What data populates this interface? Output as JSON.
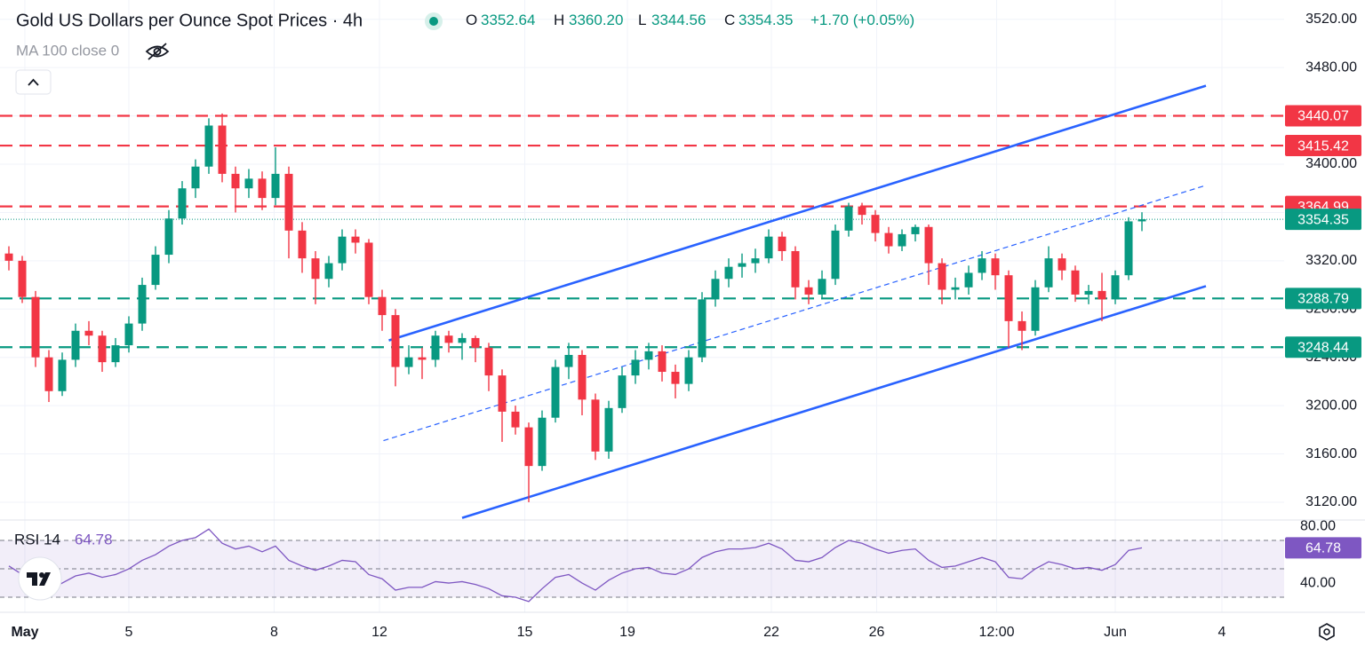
{
  "chart_data": {
    "type": "candlestick",
    "title": "Gold US Dollars per Ounce Spot Prices · 4h",
    "header": {
      "o_label": "O",
      "open": "3352.64",
      "h_label": "H",
      "high": "3360.20",
      "l_label": "L",
      "low": "3344.56",
      "c_label": "C",
      "close": "3354.35",
      "change": "+1.70 (+0.05%)"
    },
    "indicator_label": "MA 100 close 0",
    "up_color": "#089981",
    "down_color": "#f23645",
    "candles": [
      [
        3326,
        3332,
        3312,
        3320
      ],
      [
        3320,
        3324,
        3285,
        3290
      ],
      [
        3290,
        3295,
        3232,
        3240
      ],
      [
        3240,
        3246,
        3203,
        3212
      ],
      [
        3212,
        3244,
        3208,
        3238
      ],
      [
        3238,
        3268,
        3232,
        3262
      ],
      [
        3262,
        3270,
        3250,
        3258
      ],
      [
        3258,
        3262,
        3228,
        3236
      ],
      [
        3236,
        3256,
        3232,
        3250
      ],
      [
        3250,
        3274,
        3244,
        3268
      ],
      [
        3268,
        3306,
        3262,
        3300
      ],
      [
        3300,
        3332,
        3296,
        3325
      ],
      [
        3325,
        3362,
        3318,
        3355
      ],
      [
        3355,
        3386,
        3350,
        3380
      ],
      [
        3380,
        3404,
        3372,
        3398
      ],
      [
        3398,
        3438,
        3392,
        3432
      ],
      [
        3432,
        3442,
        3385,
        3392
      ],
      [
        3392,
        3398,
        3360,
        3380
      ],
      [
        3380,
        3396,
        3372,
        3388
      ],
      [
        3388,
        3394,
        3362,
        3372
      ],
      [
        3372,
        3414,
        3366,
        3392
      ],
      [
        3392,
        3398,
        3322,
        3345
      ],
      [
        3345,
        3352,
        3310,
        3322
      ],
      [
        3322,
        3328,
        3284,
        3305
      ],
      [
        3305,
        3324,
        3298,
        3318
      ],
      [
        3318,
        3346,
        3312,
        3340
      ],
      [
        3340,
        3346,
        3326,
        3335
      ],
      [
        3335,
        3338,
        3284,
        3290
      ],
      [
        3290,
        3296,
        3262,
        3275
      ],
      [
        3275,
        3280,
        3216,
        3232
      ],
      [
        3232,
        3250,
        3226,
        3240
      ],
      [
        3240,
        3248,
        3222,
        3238
      ],
      [
        3238,
        3262,
        3232,
        3258
      ],
      [
        3258,
        3262,
        3244,
        3252
      ],
      [
        3252,
        3260,
        3238,
        3256
      ],
      [
        3256,
        3258,
        3236,
        3248
      ],
      [
        3248,
        3252,
        3212,
        3225
      ],
      [
        3225,
        3230,
        3170,
        3195
      ],
      [
        3195,
        3200,
        3176,
        3182
      ],
      [
        3182,
        3186,
        3120,
        3150
      ],
      [
        3150,
        3196,
        3146,
        3190
      ],
      [
        3190,
        3238,
        3186,
        3232
      ],
      [
        3232,
        3252,
        3222,
        3242
      ],
      [
        3242,
        3246,
        3192,
        3205
      ],
      [
        3205,
        3210,
        3155,
        3162
      ],
      [
        3162,
        3204,
        3156,
        3198
      ],
      [
        3198,
        3232,
        3194,
        3225
      ],
      [
        3225,
        3246,
        3218,
        3238
      ],
      [
        3238,
        3252,
        3230,
        3245
      ],
      [
        3245,
        3250,
        3220,
        3228
      ],
      [
        3228,
        3234,
        3206,
        3218
      ],
      [
        3218,
        3246,
        3212,
        3240
      ],
      [
        3240,
        3294,
        3236,
        3288
      ],
      [
        3288,
        3312,
        3282,
        3305
      ],
      [
        3305,
        3322,
        3298,
        3315
      ],
      [
        3315,
        3326,
        3306,
        3318
      ],
      [
        3318,
        3330,
        3310,
        3322
      ],
      [
        3322,
        3346,
        3318,
        3340
      ],
      [
        3340,
        3344,
        3320,
        3328
      ],
      [
        3328,
        3332,
        3288,
        3298
      ],
      [
        3298,
        3304,
        3284,
        3292
      ],
      [
        3292,
        3312,
        3288,
        3305
      ],
      [
        3305,
        3350,
        3300,
        3345
      ],
      [
        3345,
        3368,
        3340,
        3365
      ],
      [
        3365,
        3368,
        3350,
        3358
      ],
      [
        3358,
        3362,
        3336,
        3343
      ],
      [
        3343,
        3348,
        3326,
        3332
      ],
      [
        3332,
        3346,
        3328,
        3342
      ],
      [
        3342,
        3350,
        3336,
        3348
      ],
      [
        3348,
        3350,
        3300,
        3318
      ],
      [
        3318,
        3322,
        3284,
        3296
      ],
      [
        3296,
        3306,
        3288,
        3298
      ],
      [
        3298,
        3316,
        3292,
        3310
      ],
      [
        3310,
        3328,
        3304,
        3322
      ],
      [
        3322,
        3326,
        3296,
        3308
      ],
      [
        3308,
        3312,
        3248,
        3270
      ],
      [
        3270,
        3278,
        3246,
        3262
      ],
      [
        3262,
        3304,
        3258,
        3298
      ],
      [
        3298,
        3332,
        3294,
        3322
      ],
      [
        3322,
        3326,
        3304,
        3312
      ],
      [
        3312,
        3316,
        3286,
        3292
      ],
      [
        3292,
        3300,
        3284,
        3295
      ],
      [
        3295,
        3310,
        3270,
        3288
      ],
      [
        3288,
        3312,
        3284,
        3308
      ],
      [
        3308,
        3356,
        3304,
        3352.64
      ],
      [
        3352.64,
        3360.2,
        3344.56,
        3354.35
      ]
    ],
    "xlim": [
      -0.667,
      95.667
    ],
    "xticks": [
      {
        "value": 1.2,
        "label": "May"
      },
      {
        "value": 9,
        "label": "5"
      },
      {
        "value": 19.9,
        "label": "8"
      },
      {
        "value": 27.8,
        "label": "12"
      },
      {
        "value": 38.7,
        "label": "15"
      },
      {
        "value": 46.4,
        "label": "19"
      },
      {
        "value": 57.2,
        "label": "22"
      },
      {
        "value": 65.1,
        "label": "26"
      },
      {
        "value": 74.1,
        "label": "12:00"
      },
      {
        "value": 83,
        "label": "Jun"
      },
      {
        "value": 91,
        "label": "4"
      }
    ],
    "ylim": [
      3106,
      3536
    ],
    "yticks": [
      {
        "value": 3120,
        "label": "3120.00"
      },
      {
        "value": 3160,
        "label": "3160.00"
      },
      {
        "value": 3200,
        "label": "3200.00"
      },
      {
        "value": 3240,
        "label": "3240.00"
      },
      {
        "value": 3280,
        "label": "3280.00"
      },
      {
        "value": 3320,
        "label": "3320.00"
      },
      {
        "value": 3360,
        "label": "3360.00"
      },
      {
        "value": 3400,
        "label": "3400.00"
      },
      {
        "value": 3440,
        "label": "3440.00"
      },
      {
        "value": 3480,
        "label": "3480.00"
      },
      {
        "value": 3520,
        "label": "3520.00"
      }
    ],
    "grid": true,
    "levels": [
      {
        "value": 3440.07,
        "color": "#f23645"
      },
      {
        "value": 3415.42,
        "color": "#f23645"
      },
      {
        "value": 3364.99,
        "color": "#f23645"
      },
      {
        "value": 3288.79,
        "color": "#089981"
      },
      {
        "value": 3248.44,
        "color": "#089981"
      }
    ],
    "last_price": {
      "value": 3354.35,
      "color": "#089981"
    },
    "trendlines": [
      {
        "x": [
          28.5,
          89.8
        ],
        "y": [
          3254,
          3465
        ],
        "style": "solid"
      },
      {
        "x": [
          34,
          89.8
        ],
        "y": [
          3107,
          3299
        ],
        "style": "solid"
      },
      {
        "x": [
          28.1,
          89.8
        ],
        "y": [
          3171,
          3382.5
        ],
        "style": "dashed"
      }
    ],
    "trend_color": "#2962ff",
    "rsi": {
      "label": "RSI 14",
      "color": "#7e57c2",
      "values": [
        52,
        46,
        38,
        35,
        40,
        45,
        47,
        44,
        46,
        50,
        56,
        60,
        66,
        70,
        72,
        78,
        68,
        64,
        66,
        62,
        66,
        56,
        52,
        49,
        52,
        56,
        55,
        46,
        43,
        35,
        37,
        37,
        41,
        40,
        41,
        39,
        36,
        31,
        30,
        27,
        36,
        44,
        46,
        40,
        35,
        42,
        47,
        50,
        51,
        47,
        46,
        50,
        58,
        62,
        64,
        64,
        65,
        68,
        64,
        56,
        55,
        58,
        65,
        70,
        68,
        64,
        61,
        63,
        64,
        56,
        51,
        52,
        55,
        58,
        55,
        44,
        43,
        50,
        55,
        53,
        50,
        51,
        49,
        53,
        63,
        64.78
      ],
      "ylim": [
        19.4,
        84.4
      ],
      "yticks": [
        {
          "value": 80,
          "label": "80.00"
        },
        {
          "value": 40,
          "label": "40.00"
        }
      ],
      "bands": [
        70,
        50,
        30
      ]
    }
  }
}
